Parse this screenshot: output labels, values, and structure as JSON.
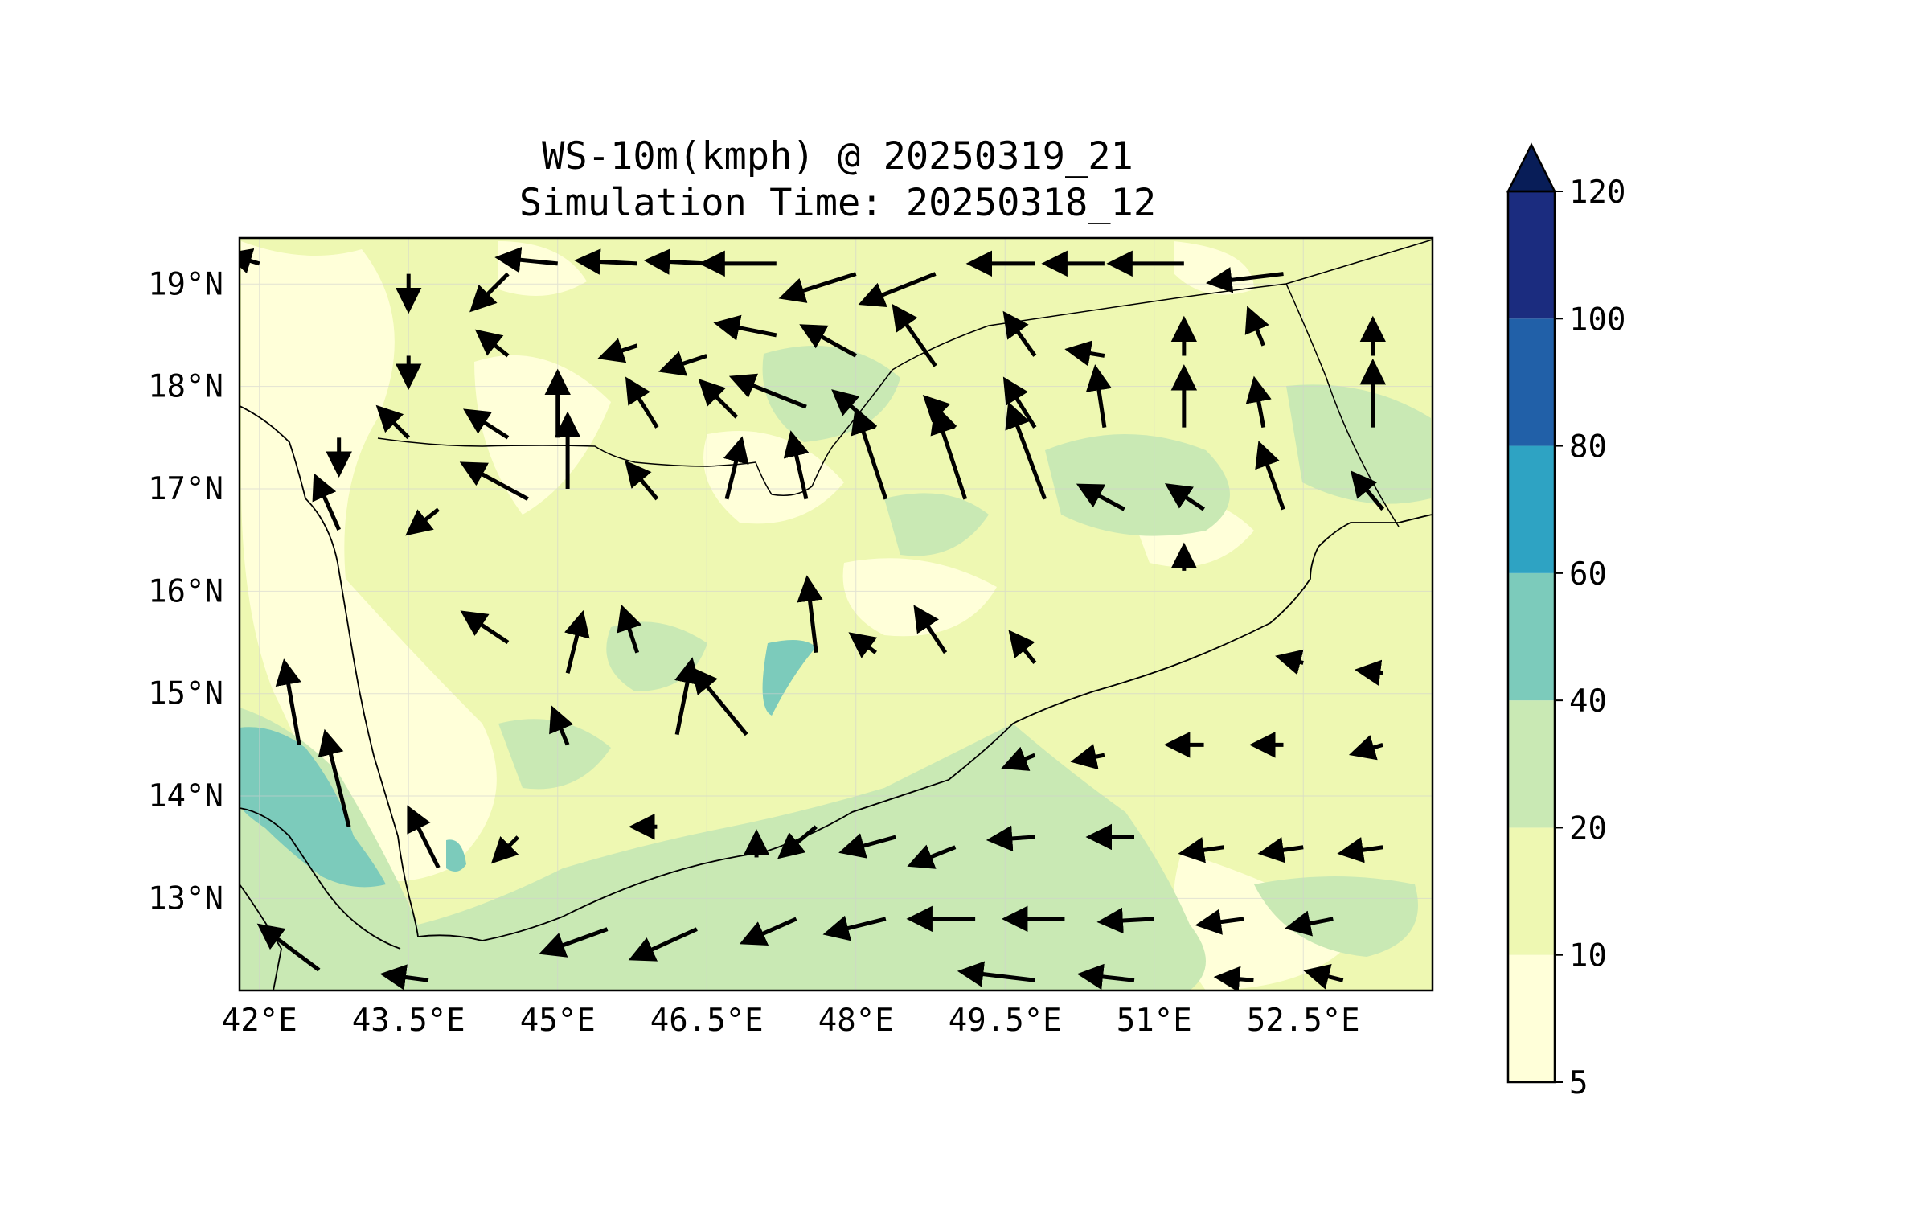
{
  "title": {
    "line1": "WS-10m(kmph) @ 20250319_21",
    "line2": "Simulation Time: 20250318_12"
  },
  "map": {
    "projection": "PlateCarree",
    "lon_range": [
      41.8,
      53.8
    ],
    "lat_range": [
      12.1,
      19.45
    ],
    "lon_ticks": [
      {
        "value": 42.0,
        "label": "42°E"
      },
      {
        "value": 43.5,
        "label": "43.5°E"
      },
      {
        "value": 45.0,
        "label": "45°E"
      },
      {
        "value": 46.5,
        "label": "46.5°E"
      },
      {
        "value": 48.0,
        "label": "48°E"
      },
      {
        "value": 49.5,
        "label": "49.5°E"
      },
      {
        "value": 51.0,
        "label": "51°E"
      },
      {
        "value": 52.5,
        "label": "52.5°E"
      }
    ],
    "lat_ticks": [
      {
        "value": 19,
        "label": "19°N"
      },
      {
        "value": 18,
        "label": "18°N"
      },
      {
        "value": 17,
        "label": "17°N"
      },
      {
        "value": 16,
        "label": "16°N"
      },
      {
        "value": 15,
        "label": "15°N"
      },
      {
        "value": 14,
        "label": "14°N"
      },
      {
        "value": 13,
        "label": "13°N"
      }
    ],
    "gridlines": true,
    "arrow_color": "#000000",
    "coastline_color": "#000000"
  },
  "colorbar": {
    "variable": "WS-10m",
    "units": "kmph",
    "extend": "max",
    "levels": [
      5,
      10,
      20,
      40,
      60,
      80,
      100,
      120
    ],
    "tick_labels": [
      "5",
      "10",
      "20",
      "40",
      "60",
      "80",
      "100",
      "120"
    ],
    "colors": [
      "#ffffd9",
      "#eef8b2",
      "#c9e9b4",
      "#7ccbbb",
      "#2ea3c3",
      "#2160a8",
      "#1b2c7f"
    ],
    "over_color": "#081d58"
  },
  "chart_data": {
    "type": "heatmap",
    "title": "WS-10m(kmph) @ 20250319_21",
    "subtitle": "Simulation Time: 20250318_12",
    "x": "longitude",
    "y": "latitude",
    "xlim": [
      41.8,
      53.8
    ],
    "ylim": [
      12.1,
      19.45
    ],
    "grid": true,
    "legend": "colorbar right",
    "wind_vectors_kmph": [
      {
        "lon": 42.0,
        "lat": 19.2,
        "u": -10,
        "v": 3
      },
      {
        "lon": 43.5,
        "lat": 19.1,
        "u": 0,
        "v": -12
      },
      {
        "lon": 44.5,
        "lat": 19.1,
        "u": -12,
        "v": -12
      },
      {
        "lon": 45.0,
        "lat": 19.2,
        "u": -20,
        "v": 2
      },
      {
        "lon": 45.8,
        "lat": 19.2,
        "u": -20,
        "v": 1
      },
      {
        "lon": 46.5,
        "lat": 19.2,
        "u": -20,
        "v": 1
      },
      {
        "lon": 47.2,
        "lat": 19.2,
        "u": -25,
        "v": 0
      },
      {
        "lon": 48.0,
        "lat": 19.1,
        "u": -25,
        "v": -8
      },
      {
        "lon": 48.8,
        "lat": 19.1,
        "u": -25,
        "v": -10
      },
      {
        "lon": 49.8,
        "lat": 19.2,
        "u": -22,
        "v": 0
      },
      {
        "lon": 50.5,
        "lat": 19.2,
        "u": -20,
        "v": 0
      },
      {
        "lon": 51.3,
        "lat": 19.2,
        "u": -25,
        "v": 0
      },
      {
        "lon": 52.3,
        "lat": 19.1,
        "u": -25,
        "v": -3
      },
      {
        "lon": 43.5,
        "lat": 18.3,
        "u": 0,
        "v": -10
      },
      {
        "lon": 44.5,
        "lat": 18.3,
        "u": -10,
        "v": 8
      },
      {
        "lon": 45.8,
        "lat": 18.4,
        "u": -12,
        "v": -4
      },
      {
        "lon": 46.5,
        "lat": 18.3,
        "u": -15,
        "v": -5
      },
      {
        "lon": 47.2,
        "lat": 18.5,
        "u": -20,
        "v": 4
      },
      {
        "lon": 48.0,
        "lat": 18.3,
        "u": -18,
        "v": 10
      },
      {
        "lon": 48.8,
        "lat": 18.2,
        "u": -14,
        "v": 20
      },
      {
        "lon": 49.8,
        "lat": 18.3,
        "u": -10,
        "v": 14
      },
      {
        "lon": 50.5,
        "lat": 18.3,
        "u": -12,
        "v": 2
      },
      {
        "lon": 51.3,
        "lat": 18.3,
        "u": 0,
        "v": 12
      },
      {
        "lon": 52.1,
        "lat": 18.4,
        "u": -5,
        "v": 12
      },
      {
        "lon": 53.2,
        "lat": 18.3,
        "u": 0,
        "v": 12
      },
      {
        "lon": 42.8,
        "lat": 17.5,
        "u": 0,
        "v": -12
      },
      {
        "lon": 43.5,
        "lat": 17.5,
        "u": -10,
        "v": 10
      },
      {
        "lon": 44.5,
        "lat": 17.5,
        "u": -14,
        "v": 9
      },
      {
        "lon": 45.0,
        "lat": 17.5,
        "u": 0,
        "v": 22
      },
      {
        "lon": 46.0,
        "lat": 17.6,
        "u": -10,
        "v": 16
      },
      {
        "lon": 46.8,
        "lat": 17.7,
        "u": -12,
        "v": 12
      },
      {
        "lon": 47.5,
        "lat": 17.8,
        "u": -25,
        "v": 10
      },
      {
        "lon": 48.2,
        "lat": 17.6,
        "u": -14,
        "v": 12
      },
      {
        "lon": 49.0,
        "lat": 17.6,
        "u": -10,
        "v": 10
      },
      {
        "lon": 49.8,
        "lat": 17.6,
        "u": -10,
        "v": 16
      },
      {
        "lon": 50.5,
        "lat": 17.6,
        "u": -3,
        "v": 20
      },
      {
        "lon": 51.3,
        "lat": 17.6,
        "u": 0,
        "v": 20
      },
      {
        "lon": 52.1,
        "lat": 17.6,
        "u": -3,
        "v": 16
      },
      {
        "lon": 53.2,
        "lat": 17.6,
        "u": 0,
        "v": 22
      },
      {
        "lon": 42.8,
        "lat": 16.6,
        "u": -8,
        "v": 18
      },
      {
        "lon": 43.8,
        "lat": 16.8,
        "u": -10,
        "v": -8
      },
      {
        "lon": 44.7,
        "lat": 16.9,
        "u": -22,
        "v": 12
      },
      {
        "lon": 45.1,
        "lat": 17.0,
        "u": 0,
        "v": 25
      },
      {
        "lon": 46.0,
        "lat": 16.9,
        "u": -10,
        "v": 12
      },
      {
        "lon": 46.7,
        "lat": 16.9,
        "u": 5,
        "v": 20
      },
      {
        "lon": 47.5,
        "lat": 16.9,
        "u": -5,
        "v": 22
      },
      {
        "lon": 48.3,
        "lat": 16.9,
        "u": -10,
        "v": 30
      },
      {
        "lon": 49.1,
        "lat": 16.9,
        "u": -10,
        "v": 30
      },
      {
        "lon": 49.9,
        "lat": 16.9,
        "u": -12,
        "v": 32
      },
      {
        "lon": 50.7,
        "lat": 16.8,
        "u": -15,
        "v": 8
      },
      {
        "lon": 51.5,
        "lat": 16.8,
        "u": -12,
        "v": 8
      },
      {
        "lon": 52.3,
        "lat": 16.8,
        "u": -8,
        "v": 22
      },
      {
        "lon": 53.3,
        "lat": 16.8,
        "u": -10,
        "v": 12
      }
    ]
  }
}
